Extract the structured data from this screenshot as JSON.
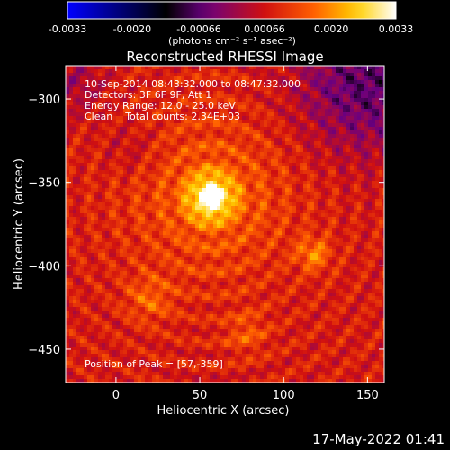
{
  "chart_data": {
    "type": "heatmap",
    "title": "Reconstructed RHESSI Image",
    "xlabel": "Heliocentric X (arcsec)",
    "ylabel": "Heliocentric Y (arcsec)",
    "xlim": [
      -30,
      160
    ],
    "ylim": [
      -470,
      -280
    ],
    "xticks": [
      0,
      50,
      100,
      150
    ],
    "yticks": [
      -300,
      -350,
      -400,
      -450
    ],
    "colorbar": {
      "min": -0.0033,
      "max": 0.0033,
      "ticks": [
        "-0.0033",
        "-0.0020",
        "-0.00066",
        "0.00066",
        "0.0020",
        "0.0033"
      ],
      "unit_label": "(photons cm⁻² s⁻¹ asec⁻²)",
      "colormap": "rhessi-blue-black-red-yellow-white",
      "colors": [
        "#0000ff",
        "#000000",
        "#6a0080",
        "#d01010",
        "#ff6000",
        "#ffd000",
        "#ffffff"
      ]
    },
    "annotations": {
      "time_range": "10-Sep-2014 08:43:32.000 to 08:47:32.000",
      "detectors": "Detectors: 3F 6F 9F, Att 1",
      "energy_range": "Energy Range: 12.0 - 25.0 keV",
      "clean_counts": "Clean    Total counts: 2.34E+03",
      "peak": "Position of Peak = [57,-359]"
    },
    "peak": {
      "x": 57,
      "y": -359
    }
  },
  "footer": {
    "datestamp": "17-May-2022 01:41"
  }
}
